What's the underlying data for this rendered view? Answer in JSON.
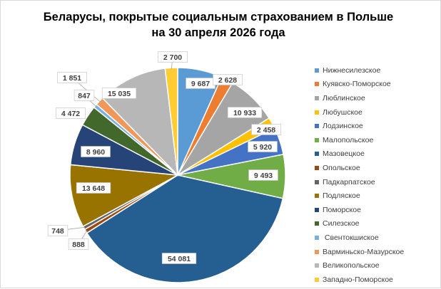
{
  "chart_data": {
    "type": "pie",
    "title": [
      "Беларусы, покрытые социальным страхованием в Польше",
      "на 30 апреля 2026 года"
    ],
    "legend_position": "right",
    "slices": [
      {
        "name": "Нижнесилезское",
        "value": 9687,
        "label": "9 687",
        "color": "#5B9BD5"
      },
      {
        "name": "Куявско-Поморское",
        "value": 2628,
        "label": "2 628",
        "color": "#ED7D31"
      },
      {
        "name": "Люблинское",
        "value": 10933,
        "label": "10 933",
        "color": "#A5A5A5"
      },
      {
        "name": "Любушское",
        "value": 2458,
        "label": "2 458",
        "color": "#FFC000"
      },
      {
        "name": "Лодзинское",
        "value": 5920,
        "label": "5 920",
        "color": "#4472C4"
      },
      {
        "name": "Малопольское",
        "value": 9493,
        "label": "9 493",
        "color": "#70AD47"
      },
      {
        "name": "Мазовецкое",
        "value": 54081,
        "label": "54 081",
        "color": "#255E91"
      },
      {
        "name": "Опольское",
        "value": 888,
        "label": "888",
        "color": "#9E480E"
      },
      {
        "name": "Падкарпатское",
        "value": 748,
        "label": "748",
        "color": "#636363"
      },
      {
        "name": "Подляское",
        "value": 13648,
        "label": "13 648",
        "color": "#997300"
      },
      {
        "name": "Поморское",
        "value": 8960,
        "label": "8 960",
        "color": "#264478"
      },
      {
        "name": "Силезское",
        "value": 4472,
        "label": "4 472",
        "color": "#43682B"
      },
      {
        "name": " Свентокшиское",
        "value": 847,
        "label": "847",
        "color": "#7CAFDD"
      },
      {
        "name": "Варминьско-Мазурское",
        "value": 1851,
        "label": "1 851",
        "color": "#F1975A"
      },
      {
        "name": "Великопольское",
        "value": 15035,
        "label": "15 035",
        "color": "#B7B7B7"
      },
      {
        "name": "Западно-Поморское",
        "value": 2700,
        "label": "2 700",
        "color": "#FFCD33"
      }
    ]
  }
}
